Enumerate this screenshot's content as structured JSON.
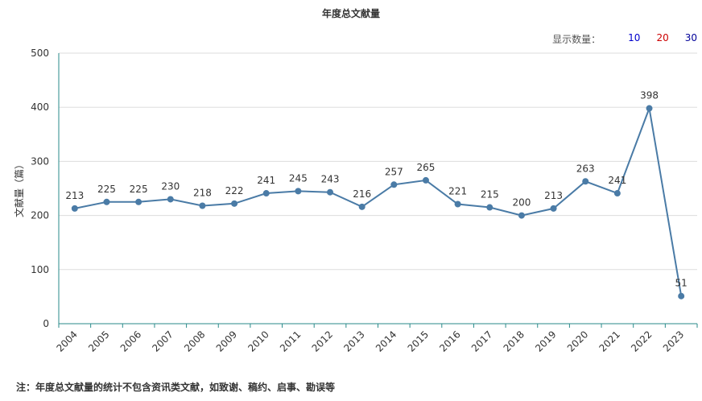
{
  "title": "年度总文献量",
  "display_count": {
    "label": "显示数量：",
    "options": [
      {
        "label": "10",
        "color": "#0000cc"
      },
      {
        "label": "20",
        "color": "#cc0000"
      },
      {
        "label": "30",
        "color": "#000099"
      }
    ]
  },
  "note": "注：年度总文献量的统计不包含资讯类文献，如致谢、稿约、启事、勘误等",
  "colors": {
    "line": "#4a7ba6",
    "axis": "#2a8a8a",
    "grid": "#dddddd"
  },
  "chart_data": {
    "type": "line",
    "ylabel": "文献量（篇）",
    "xlabel": "",
    "ylim": [
      0,
      500
    ],
    "yticks": [
      0,
      100,
      200,
      300,
      400,
      500
    ],
    "categories": [
      "2004",
      "2005",
      "2006",
      "2007",
      "2008",
      "2009",
      "2010",
      "2011",
      "2012",
      "2013",
      "2014",
      "2015",
      "2016",
      "2017",
      "2018",
      "2019",
      "2020",
      "2021",
      "2022",
      "2023"
    ],
    "values": [
      213,
      225,
      225,
      230,
      218,
      222,
      241,
      245,
      243,
      216,
      257,
      265,
      221,
      215,
      200,
      213,
      263,
      241,
      398,
      51
    ],
    "grid": "horizontal",
    "data_labels": true
  }
}
